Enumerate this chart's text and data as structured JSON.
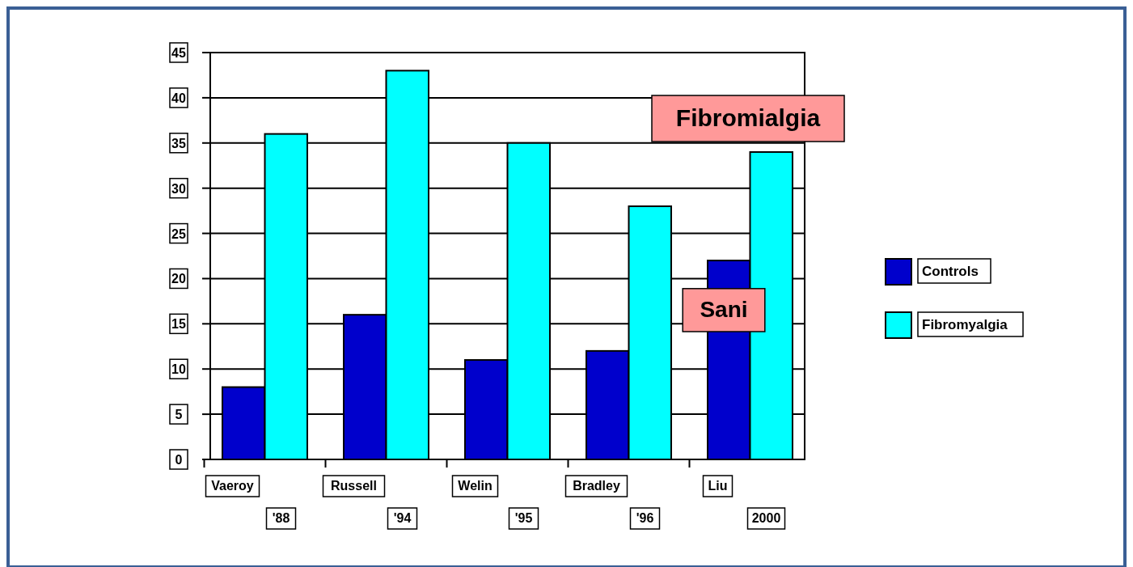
{
  "chart_data": {
    "type": "bar",
    "categories": [
      "Vaeroy\n'88",
      "Russell\n'94",
      "Welin\n'95",
      "Bradley\n'96",
      "Liu\n2000"
    ],
    "series": [
      {
        "name": "Controls",
        "color": "#0000cc",
        "values": [
          8,
          16,
          11,
          12,
          22
        ]
      },
      {
        "name": "Fibromyalgia",
        "color": "#00ffff",
        "values": [
          36,
          43,
          35,
          28,
          34
        ]
      }
    ],
    "ylim": [
      0,
      45
    ],
    "yticks": [
      0,
      5,
      10,
      15,
      20,
      25,
      30,
      35,
      40,
      45
    ],
    "grid": "y",
    "legend": "right",
    "annotations": [
      "Fibromialgia",
      "Sani"
    ]
  }
}
